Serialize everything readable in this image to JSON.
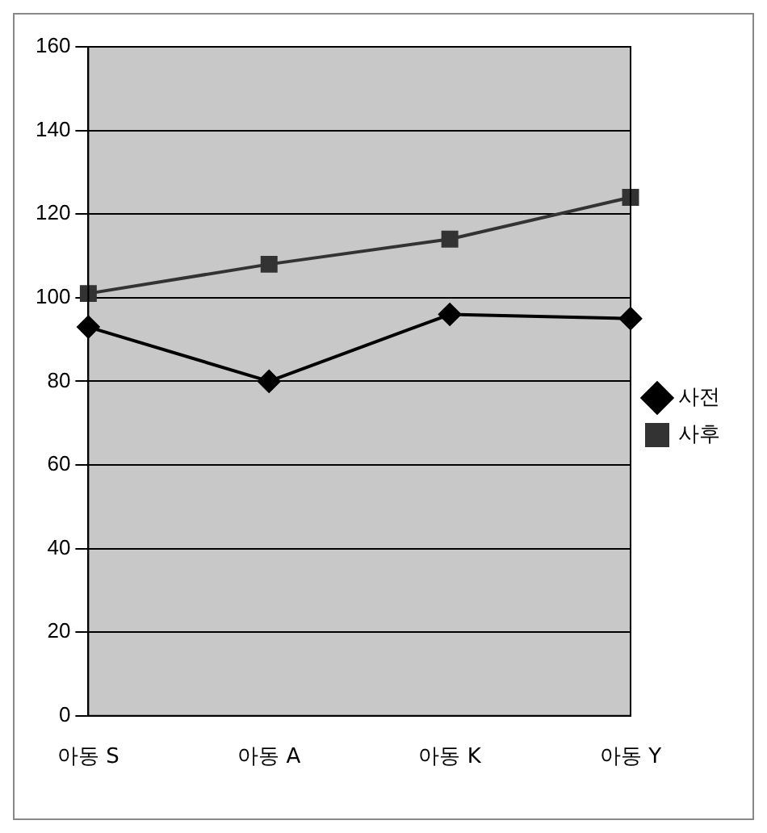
{
  "chart_data": {
    "type": "line",
    "categories": [
      "아동 S",
      "아동 A",
      "아동 K",
      "아동 Y"
    ],
    "series": [
      {
        "name": "사전",
        "color": "#000000",
        "values": [
          93,
          80,
          96,
          95
        ],
        "marker": "diamond"
      },
      {
        "name": "사후",
        "color": "#333333",
        "values": [
          101,
          108,
          114,
          124
        ],
        "marker": "square"
      }
    ],
    "ylim": [
      0,
      160
    ],
    "yticks": [
      0,
      20,
      40,
      60,
      80,
      100,
      120,
      140,
      160
    ],
    "grid": "y",
    "legend": "right",
    "line_style": "solid"
  }
}
